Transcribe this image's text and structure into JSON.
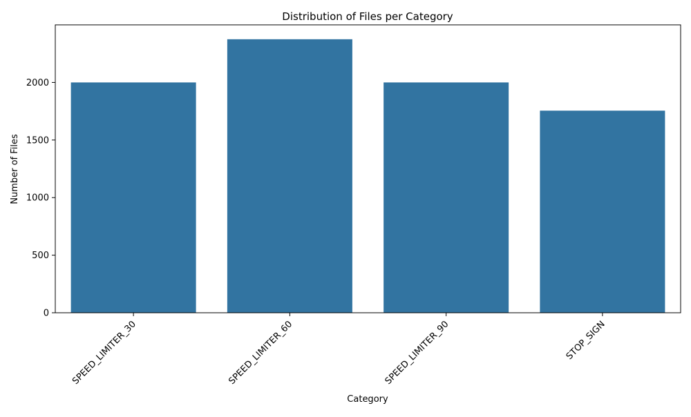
{
  "chart_data": {
    "type": "bar",
    "title": "Distribution of Files per Category",
    "xlabel": "Category",
    "ylabel": "Number of Files",
    "categories": [
      "SPEED_LIMITER_30",
      "SPEED_LIMITER_60",
      "SPEED_LIMITER_90",
      "STOP_SIGN"
    ],
    "values": [
      2000,
      2375,
      2000,
      1755
    ],
    "ylim": [
      0,
      2500
    ],
    "yticks": [
      0,
      500,
      1000,
      1500,
      2000
    ],
    "grid": false,
    "bar_color": "#3274a1"
  }
}
